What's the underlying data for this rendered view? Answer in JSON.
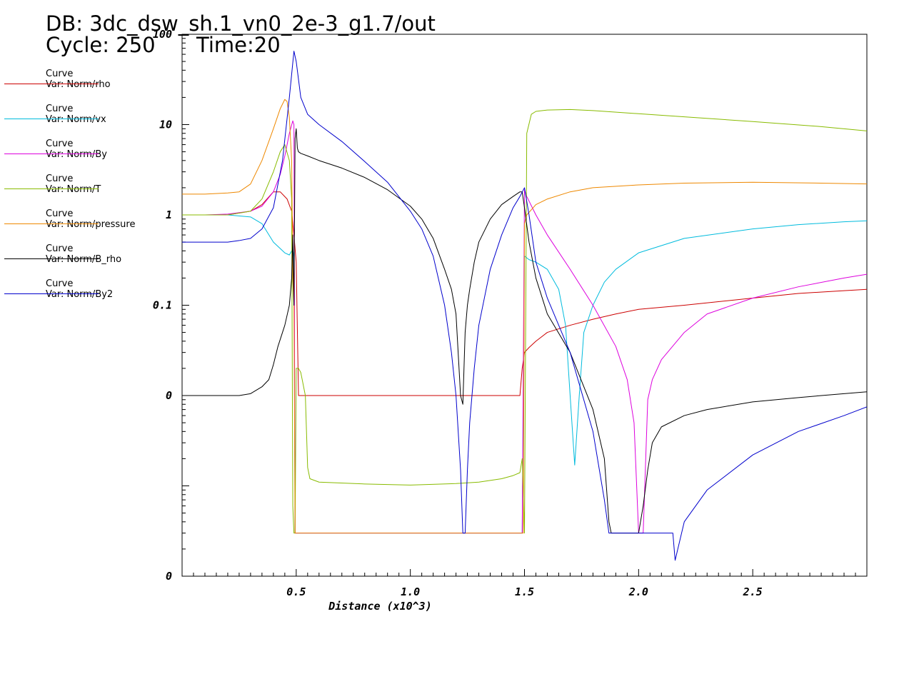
{
  "header": {
    "db_label": "DB: 3dc_dsw_sh.1_vn0_2e-3_g1.7/out",
    "cycle_label": "Cycle: 250",
    "time_label": "Time:20"
  },
  "legend": [
    {
      "line1": "Curve",
      "line2": "Var: Norm/rho",
      "color": "#cc0000"
    },
    {
      "line1": "Curve",
      "line2": "Var: Norm/vx",
      "color": "#00bbdd"
    },
    {
      "line1": "Curve",
      "line2": "Var: Norm/By",
      "color": "#dd00dd"
    },
    {
      "line1": "Curve",
      "line2": "Var: Norm/T",
      "color": "#88bb00"
    },
    {
      "line1": "Curve",
      "line2": "Var: Norm/pressure",
      "color": "#ee8800"
    },
    {
      "line1": "Curve",
      "line2": "Var: Norm/B_rho",
      "color": "#000000"
    },
    {
      "line1": "Curve",
      "line2": "Var: Norm/By2",
      "color": "#0000cc"
    }
  ],
  "chart_data": {
    "type": "line",
    "xlabel": "Distance (x10^3)",
    "ylabel": "",
    "xlim": [
      0.0,
      3.0
    ],
    "ylim": [
      0.0001,
      100
    ],
    "yscale": "log",
    "x_ticks": [
      {
        "value": 0.5,
        "label": "0.5"
      },
      {
        "value": 1.0,
        "label": "1.0"
      },
      {
        "value": 1.5,
        "label": "1.5"
      },
      {
        "value": 2.0,
        "label": "2.0"
      },
      {
        "value": 2.5,
        "label": "2.5"
      }
    ],
    "y_ticks": [
      {
        "value": 100,
        "label": "100"
      },
      {
        "value": 10,
        "label": "10"
      },
      {
        "value": 1,
        "label": "1"
      },
      {
        "value": 0.1,
        "label": "0.1"
      },
      {
        "value": 0.01,
        "label": "0"
      },
      {
        "value": 0.0001,
        "label": "0"
      }
    ],
    "grid": false,
    "series": [
      {
        "name": "Norm/rho",
        "color": "#cc0000",
        "x": [
          0.0,
          0.1,
          0.2,
          0.3,
          0.35,
          0.4,
          0.43,
          0.46,
          0.48,
          0.49,
          0.5,
          0.51,
          0.52,
          1.48,
          1.49,
          1.5,
          1.52,
          1.55,
          1.6,
          1.7,
          1.8,
          1.9,
          2.0,
          2.2,
          2.5,
          2.7,
          2.9,
          3.0
        ],
        "y": [
          1.0,
          1.0,
          1.0,
          1.1,
          1.3,
          1.8,
          1.8,
          1.5,
          1.1,
          0.6,
          0.3,
          0.01,
          0.01,
          0.01,
          0.02,
          0.03,
          0.034,
          0.04,
          0.05,
          0.06,
          0.07,
          0.08,
          0.09,
          0.1,
          0.12,
          0.135,
          0.145,
          0.15
        ]
      },
      {
        "name": "Norm/vx",
        "color": "#00bbdd",
        "x": [
          0.0,
          0.1,
          0.2,
          0.3,
          0.35,
          0.4,
          0.45,
          0.47,
          0.48,
          0.485,
          0.49,
          0.495,
          0.5,
          1.48,
          1.49,
          1.5,
          1.52,
          1.55,
          1.6,
          1.65,
          1.68,
          1.7,
          1.72,
          1.74,
          1.76,
          1.8,
          1.85,
          1.9,
          2.0,
          2.2,
          2.5,
          2.7,
          2.9,
          3.0
        ],
        "y": [
          1.0,
          1.0,
          1.0,
          0.95,
          0.8,
          0.5,
          0.38,
          0.36,
          0.4,
          0.42,
          0.35,
          0.0003,
          0.0003,
          0.0003,
          0.0003,
          0.35,
          0.32,
          0.3,
          0.25,
          0.15,
          0.06,
          0.01,
          0.0017,
          0.01,
          0.05,
          0.1,
          0.18,
          0.25,
          0.38,
          0.55,
          0.7,
          0.78,
          0.84,
          0.86
        ]
      },
      {
        "name": "Norm/By",
        "color": "#dd00dd",
        "x": [
          0.0,
          0.1,
          0.2,
          0.3,
          0.35,
          0.4,
          0.43,
          0.45,
          0.47,
          0.485,
          0.49,
          0.495,
          0.5,
          1.49,
          1.5,
          1.51,
          1.55,
          1.6,
          1.7,
          1.8,
          1.9,
          1.95,
          1.98,
          2.0,
          2.02,
          2.04,
          2.06,
          2.1,
          2.2,
          2.3,
          2.5,
          2.7,
          2.9,
          3.0
        ],
        "y": [
          1.0,
          1.0,
          1.02,
          1.1,
          1.25,
          1.8,
          2.8,
          4.5,
          8,
          11,
          10,
          0.0003,
          0.0003,
          0.0003,
          1.9,
          1.6,
          1.0,
          0.6,
          0.25,
          0.1,
          0.035,
          0.015,
          0.005,
          0.0003,
          0.0003,
          0.009,
          0.015,
          0.025,
          0.05,
          0.08,
          0.12,
          0.16,
          0.2,
          0.22
        ]
      },
      {
        "name": "Norm/T",
        "color": "#88bb00",
        "x": [
          0.0,
          0.1,
          0.2,
          0.3,
          0.35,
          0.4,
          0.43,
          0.45,
          0.47,
          0.48,
          0.485,
          0.49,
          0.495,
          0.5,
          0.51,
          0.52,
          0.54,
          0.55,
          0.56,
          0.6,
          0.8,
          1.0,
          1.2,
          1.3,
          1.4,
          1.45,
          1.48,
          1.49,
          1.5,
          1.51,
          1.53,
          1.55,
          1.6,
          1.7,
          1.8,
          2.0,
          2.2,
          2.5,
          2.8,
          3.0
        ],
        "y": [
          1.0,
          1.0,
          1.0,
          1.1,
          1.5,
          3,
          5,
          6,
          4,
          1.5,
          0.0006,
          0.0003,
          0.0003,
          0.02,
          0.02,
          0.018,
          0.01,
          0.0016,
          0.0012,
          0.0011,
          0.00105,
          0.00102,
          0.00106,
          0.0011,
          0.0012,
          0.0013,
          0.0014,
          0.002,
          0.0003,
          8,
          13,
          14,
          14.5,
          14.7,
          14.3,
          13.2,
          12.2,
          10.8,
          9.5,
          8.5
        ]
      },
      {
        "name": "Norm/pressure",
        "color": "#ee8800",
        "x": [
          0.0,
          0.1,
          0.2,
          0.25,
          0.3,
          0.35,
          0.4,
          0.43,
          0.45,
          0.46,
          0.47,
          0.48,
          0.485,
          0.49,
          0.495,
          0.5,
          1.48,
          1.49,
          1.495,
          1.5,
          1.51,
          1.55,
          1.6,
          1.7,
          1.8,
          2.0,
          2.2,
          2.5,
          2.8,
          3.0
        ],
        "y": [
          1.7,
          1.7,
          1.75,
          1.8,
          2.2,
          4,
          9,
          15,
          19,
          18,
          12,
          4,
          0.2,
          0.1,
          0.0003,
          0.0003,
          0.0003,
          0.0003,
          0.0003,
          0.8,
          1.0,
          1.3,
          1.5,
          1.8,
          2.0,
          2.15,
          2.25,
          2.3,
          2.25,
          2.2
        ]
      },
      {
        "name": "Norm/B_rho",
        "color": "#000000",
        "x": [
          0.0,
          0.1,
          0.2,
          0.25,
          0.3,
          0.35,
          0.38,
          0.4,
          0.42,
          0.45,
          0.47,
          0.48,
          0.485,
          0.49,
          0.495,
          0.5,
          0.505,
          0.51,
          0.52,
          0.55,
          0.6,
          0.7,
          0.8,
          0.9,
          1.0,
          1.05,
          1.1,
          1.15,
          1.18,
          1.2,
          1.22,
          1.23,
          1.24,
          1.25,
          1.26,
          1.28,
          1.3,
          1.35,
          1.4,
          1.45,
          1.48,
          1.49,
          1.5,
          1.52,
          1.55,
          1.6,
          1.7,
          1.8,
          1.85,
          1.87,
          1.88,
          1.89,
          2.0,
          2.02,
          2.04,
          2.06,
          2.1,
          2.2,
          2.3,
          2.5,
          2.7,
          2.9,
          3.0
        ],
        "y": [
          0.01,
          0.01,
          0.01,
          0.01,
          0.0105,
          0.0125,
          0.015,
          0.022,
          0.035,
          0.06,
          0.1,
          0.2,
          0.6,
          0.1,
          7,
          9,
          5.5,
          5.0,
          4.8,
          4.5,
          4.0,
          3.3,
          2.6,
          1.9,
          1.25,
          0.9,
          0.55,
          0.25,
          0.15,
          0.08,
          0.01,
          0.008,
          0.05,
          0.1,
          0.15,
          0.3,
          0.5,
          0.9,
          1.3,
          1.6,
          1.8,
          1.8,
          1.2,
          0.5,
          0.2,
          0.08,
          0.03,
          0.007,
          0.002,
          0.0004,
          0.0003,
          0.0003,
          0.0003,
          0.0006,
          0.0015,
          0.003,
          0.0045,
          0.006,
          0.007,
          0.0085,
          0.0095,
          0.0105,
          0.011
        ]
      },
      {
        "name": "Norm/By2",
        "color": "#0000cc",
        "x": [
          0.0,
          0.1,
          0.2,
          0.25,
          0.3,
          0.35,
          0.4,
          0.44,
          0.47,
          0.49,
          0.5,
          0.52,
          0.55,
          0.6,
          0.7,
          0.8,
          0.9,
          1.0,
          1.05,
          1.1,
          1.15,
          1.18,
          1.2,
          1.22,
          1.23,
          1.235,
          1.24,
          1.25,
          1.26,
          1.28,
          1.3,
          1.35,
          1.4,
          1.45,
          1.48,
          1.5,
          1.52,
          1.55,
          1.6,
          1.7,
          1.8,
          1.85,
          1.87,
          1.88,
          1.89,
          2.0,
          2.1,
          2.14,
          2.15,
          2.16,
          2.2,
          2.3,
          2.5,
          2.7,
          2.9,
          3.0
        ],
        "y": [
          0.5,
          0.5,
          0.5,
          0.52,
          0.55,
          0.7,
          1.2,
          4,
          20,
          65,
          50,
          20,
          13,
          10,
          6.5,
          3.9,
          2.3,
          1.1,
          0.7,
          0.35,
          0.1,
          0.03,
          0.01,
          0.0015,
          0.0003,
          0.0003,
          0.0003,
          0.0015,
          0.005,
          0.02,
          0.06,
          0.25,
          0.6,
          1.2,
          1.6,
          2.0,
          1.0,
          0.3,
          0.12,
          0.03,
          0.004,
          0.0007,
          0.0003,
          0.0003,
          0.0003,
          0.0003,
          0.0003,
          0.0003,
          0.0003,
          0.00015,
          0.0004,
          0.0009,
          0.0022,
          0.004,
          0.006,
          0.0075
        ]
      }
    ]
  }
}
